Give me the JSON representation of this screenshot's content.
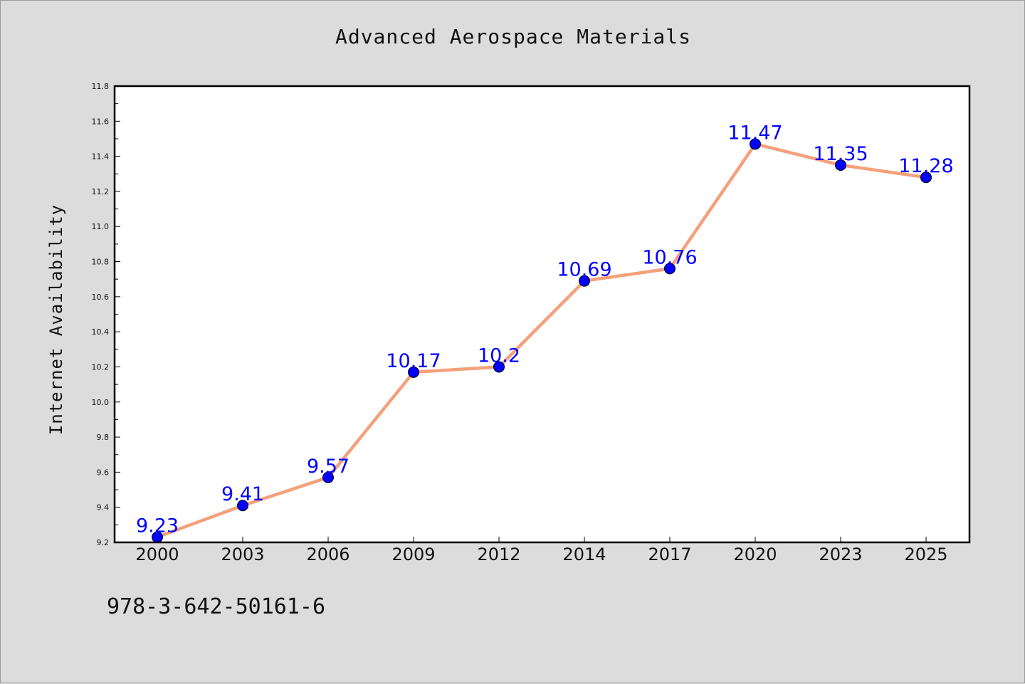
{
  "chart_data": {
    "type": "line",
    "title": "Advanced Aerospace Materials",
    "xlabel": "",
    "ylabel": "Internet Availability",
    "categories": [
      "2000",
      "2003",
      "2006",
      "2009",
      "2012",
      "2014",
      "2017",
      "2020",
      "2023",
      "2025"
    ],
    "series": [
      {
        "values": [
          9.23,
          9.41,
          9.57,
          10.17,
          10.2,
          10.69,
          10.76,
          11.47,
          11.35,
          11.28
        ],
        "labels": [
          "9.23",
          "9.41",
          "9.57",
          "10.17",
          "10.2",
          "10.69",
          "10.76",
          "11.47",
          "11.35",
          "11.28"
        ],
        "line_color": "#f4a07a",
        "marker_color": "#0000ff"
      }
    ],
    "ylim": [
      9.2,
      11.8
    ],
    "yticks": [
      "9.2",
      "9.4",
      "9.6",
      "9.8",
      "10.0",
      "10.2",
      "10.4",
      "10.6",
      "10.8",
      "11.0",
      "11.2",
      "11.4",
      "11.6",
      "11.8"
    ],
    "grid": false,
    "legend": "none",
    "label_color": "#0000ff"
  },
  "footer_text": "978-3-642-50161-6"
}
